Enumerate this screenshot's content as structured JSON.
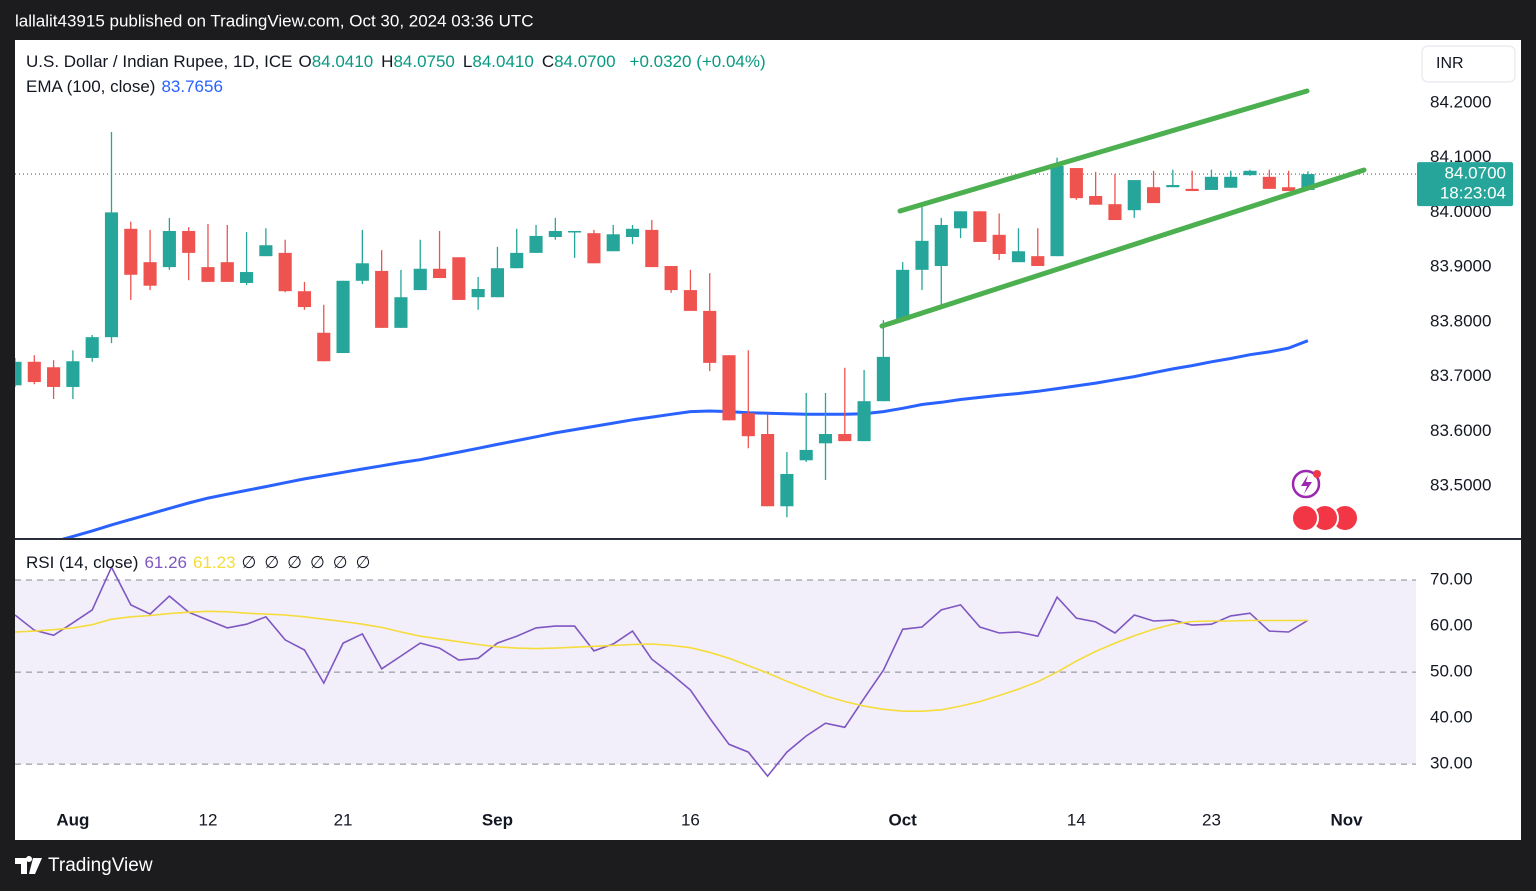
{
  "header": {
    "publisher": "lallalit43915 published on TradingView.com, Oct 30, 2024 03:36 UTC"
  },
  "footer": {
    "brand": "TradingView"
  },
  "currency_button": "INR",
  "chart_data": [
    {
      "type": "candlestick",
      "title": "U.S. Dollar / Indian Rupee, 1D, ICE",
      "legend": [
        {
          "label": "O",
          "value": "84.0410"
        },
        {
          "label": "H",
          "value": "84.0750"
        },
        {
          "label": "L",
          "value": "84.0410"
        },
        {
          "label": "C",
          "value": "84.0700"
        }
      ],
      "change": "+0.0320 (+0.04%)",
      "up_color": "#26a69a",
      "down_color": "#ef5350",
      "open": [
        83.684,
        83.727,
        83.717,
        83.681,
        83.734,
        83.772,
        83.97,
        83.909,
        83.9,
        83.966,
        83.9,
        83.909,
        83.871,
        83.92,
        83.926,
        83.856,
        83.78,
        83.743,
        83.875,
        83.893,
        83.789,
        83.858,
        83.897,
        83.918,
        83.845,
        83.845,
        83.898,
        83.926,
        83.955,
        83.964,
        83.962,
        83.929,
        83.955,
        83.968,
        83.902,
        83.858,
        83.82,
        83.739,
        83.633,
        83.595,
        83.463,
        83.547,
        83.578,
        83.595,
        83.582,
        83.655,
        83.803,
        83.895,
        83.902,
        83.971,
        84.002,
        83.959,
        83.909,
        83.92,
        83.92,
        84.081,
        84.03,
        84.015,
        84.004,
        84.046,
        84.046,
        84.043,
        84.041,
        84.045,
        84.068,
        84.065,
        84.046,
        84.041
      ],
      "high": [
        83.734,
        83.739,
        83.73,
        83.748,
        83.776,
        84.147,
        83.983,
        83.968,
        83.99,
        83.973,
        83.979,
        83.977,
        83.964,
        83.971,
        83.95,
        83.873,
        83.831,
        83.875,
        83.968,
        83.931,
        83.895,
        83.95,
        83.966,
        83.918,
        83.882,
        83.937,
        83.97,
        83.977,
        83.99,
        83.966,
        83.968,
        83.977,
        83.977,
        83.986,
        83.902,
        83.895,
        83.889,
        83.739,
        83.748,
        83.631,
        83.562,
        83.67,
        83.67,
        83.716,
        83.712,
        83.803,
        83.909,
        84.019,
        83.99,
        84.002,
        84.002,
        83.998,
        83.971,
        83.971,
        84.1,
        84.081,
        84.074,
        84.07,
        84.059,
        84.076,
        84.078,
        84.076,
        84.078,
        84.076,
        84.078,
        84.078,
        84.076,
        84.075
      ],
      "low": [
        83.681,
        83.686,
        83.659,
        83.659,
        83.727,
        83.761,
        83.84,
        83.858,
        83.895,
        83.876,
        83.873,
        83.873,
        83.867,
        83.92,
        83.854,
        83.822,
        83.728,
        83.743,
        83.869,
        83.789,
        83.789,
        83.858,
        83.88,
        83.84,
        83.822,
        83.845,
        83.898,
        83.926,
        83.95,
        83.917,
        83.907,
        83.929,
        83.942,
        83.9,
        83.853,
        83.82,
        83.71,
        83.62,
        83.569,
        83.463,
        83.443,
        83.544,
        83.511,
        83.582,
        83.582,
        83.655,
        83.8,
        83.858,
        83.829,
        83.953,
        83.946,
        83.913,
        83.909,
        83.902,
        83.92,
        84.023,
        84.014,
        83.986,
        83.99,
        84.017,
        84.046,
        84.039,
        84.041,
        84.045,
        84.067,
        84.043,
        84.039,
        84.041
      ],
      "close": [
        83.727,
        83.69,
        83.681,
        83.728,
        83.772,
        84.0,
        83.886,
        83.866,
        83.966,
        83.926,
        83.873,
        83.873,
        83.891,
        83.94,
        83.856,
        83.827,
        83.728,
        83.875,
        83.907,
        83.789,
        83.845,
        83.897,
        83.88,
        83.84,
        83.86,
        83.898,
        83.926,
        83.957,
        83.966,
        83.966,
        83.907,
        83.96,
        83.97,
        83.9,
        83.858,
        83.82,
        83.725,
        83.62,
        83.591,
        83.463,
        83.522,
        83.566,
        83.595,
        83.582,
        83.655,
        83.736,
        83.895,
        83.948,
        83.977,
        84.002,
        83.946,
        83.924,
        83.929,
        83.902,
        84.085,
        84.026,
        84.014,
        83.986,
        84.059,
        84.017,
        84.05,
        84.039,
        84.065,
        84.065,
        84.076,
        84.043,
        84.039,
        84.07
      ],
      "series": [
        {
          "name": "EMA (100, close)",
          "value_label": "83.7656",
          "color": "#2962ff",
          "values": [
            83.385,
            83.392,
            83.398,
            83.408,
            83.418,
            83.429,
            83.439,
            83.449,
            83.459,
            83.469,
            83.478,
            83.485,
            83.492,
            83.499,
            83.506,
            83.513,
            83.519,
            83.525,
            83.531,
            83.537,
            83.543,
            83.548,
            83.555,
            83.562,
            83.569,
            83.576,
            83.583,
            83.59,
            83.597,
            83.603,
            83.609,
            83.615,
            83.621,
            83.626,
            83.631,
            83.636,
            83.637,
            83.636,
            83.634,
            83.633,
            83.632,
            83.631,
            83.631,
            83.631,
            83.632,
            83.636,
            83.642,
            83.649,
            83.653,
            83.658,
            83.662,
            83.666,
            83.669,
            83.673,
            83.678,
            83.683,
            83.688,
            83.694,
            83.7,
            83.707,
            83.714,
            83.72,
            83.727,
            83.733,
            83.74,
            83.745,
            83.752,
            83.7656
          ]
        }
      ],
      "last_price": {
        "value": 84.07,
        "label": "84.0700"
      },
      "countdown": "18:23:04",
      "xlim": [
        0,
        72.6
      ],
      "xticks": [
        {
          "value": 3,
          "label": "Aug"
        },
        {
          "value": 10,
          "label": "12"
        },
        {
          "value": 17,
          "label": "21"
        },
        {
          "value": 25,
          "label": "Sep"
        },
        {
          "value": 35,
          "label": "16"
        },
        {
          "value": 46,
          "label": "Oct"
        },
        {
          "value": 55,
          "label": "14"
        },
        {
          "value": 62,
          "label": "23"
        },
        {
          "value": 69,
          "label": "Nov"
        }
      ],
      "ylim": [
        83.405,
        84.315
      ],
      "yticks": [
        {
          "value": 83.5,
          "label": "83.5000"
        },
        {
          "value": 83.6,
          "label": "83.6000"
        },
        {
          "value": 83.7,
          "label": "83.7000"
        },
        {
          "value": 83.8,
          "label": "83.8000"
        },
        {
          "value": 83.9,
          "label": "83.9000"
        },
        {
          "value": 84.0,
          "label": "84.0000"
        },
        {
          "value": 84.1,
          "label": "84.1000"
        },
        {
          "value": 84.2,
          "label": "84.2000"
        }
      ]
    },
    {
      "type": "line",
      "title": "RSI (14, close)",
      "placeholders": [
        "∅",
        "∅",
        "∅",
        "∅",
        "∅",
        "∅"
      ],
      "series": [
        {
          "value_label": "61.26",
          "color": "#7e57c2",
          "values": [
            62.4,
            59.1,
            58.0,
            60.7,
            63.5,
            72.8,
            64.6,
            62.6,
            66.5,
            63.0,
            61.3,
            59.6,
            60.4,
            62.0,
            57.0,
            54.8,
            47.6,
            56.3,
            58.3,
            50.7,
            53.5,
            56.3,
            55.2,
            52.6,
            53.0,
            56.3,
            57.8,
            59.6,
            60.0,
            60.0,
            54.6,
            56.1,
            58.9,
            52.8,
            49.6,
            46.1,
            40.0,
            34.3,
            32.6,
            27.4,
            32.6,
            36.1,
            38.9,
            38.0,
            44.3,
            50.4,
            59.3,
            59.8,
            63.5,
            64.6,
            59.8,
            58.5,
            58.7,
            57.8,
            66.3,
            61.7,
            60.9,
            58.5,
            62.4,
            61.1,
            61.3,
            60.2,
            60.4,
            62.2,
            62.8,
            58.9,
            58.7,
            61.26
          ]
        },
        {
          "value_label": "61.23",
          "color": "#f5dc3c",
          "values": [
            58.7,
            58.9,
            59.2,
            59.6,
            60.3,
            61.5,
            62.0,
            62.3,
            62.7,
            63.0,
            63.2,
            63.1,
            62.8,
            62.6,
            62.4,
            62.0,
            61.5,
            61.0,
            60.4,
            59.7,
            58.7,
            57.8,
            57.2,
            56.6,
            56.0,
            55.5,
            55.2,
            55.1,
            55.2,
            55.4,
            55.6,
            55.8,
            56.0,
            56.1,
            55.8,
            55.3,
            54.3,
            53.0,
            51.4,
            49.8,
            48.0,
            46.4,
            44.8,
            43.6,
            42.6,
            41.9,
            41.5,
            41.5,
            41.8,
            42.6,
            43.6,
            44.9,
            46.3,
            47.9,
            50.0,
            52.4,
            54.5,
            56.3,
            57.9,
            59.3,
            60.4,
            61.0,
            61.1,
            61.1,
            61.2,
            61.2,
            61.2,
            61.23
          ]
        }
      ],
      "band": [
        30,
        70
      ],
      "dashed_levels": [
        70,
        50,
        30
      ],
      "ylim": [
        22.2,
        78.7
      ],
      "yticks": [
        {
          "value": 30,
          "label": "30.00"
        },
        {
          "value": 40,
          "label": "40.00"
        },
        {
          "value": 50,
          "label": "50.00"
        },
        {
          "value": 60,
          "label": "60.00"
        },
        {
          "value": 70,
          "label": "70.00"
        }
      ]
    }
  ]
}
